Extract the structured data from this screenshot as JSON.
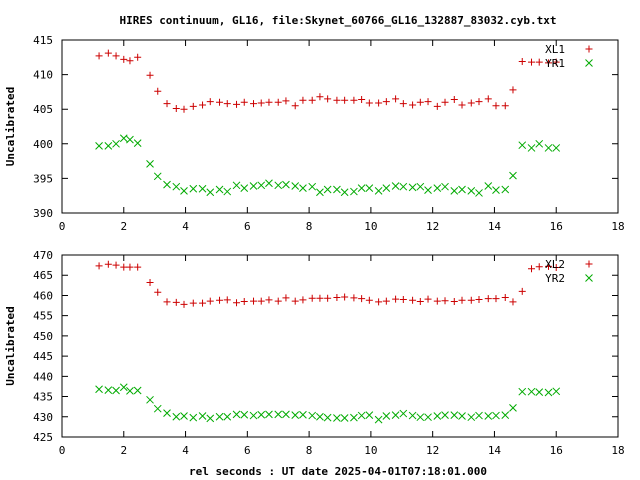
{
  "title": "HIRES continuum, GL16, file:Skynet_60766_GL16_132887_83032.cyb.txt",
  "xlabel": "rel seconds : UT date 2025-04-01T07:18:01.000",
  "chart_data": [
    {
      "type": "scatter",
      "ylabel": "Uncalibrated",
      "xlim": [
        0,
        18
      ],
      "ylim": [
        390,
        415
      ],
      "xticks": [
        0,
        2,
        4,
        6,
        8,
        10,
        12,
        14,
        16,
        18
      ],
      "yticks": [
        390,
        395,
        400,
        405,
        410,
        415
      ],
      "grid": false,
      "legend": "top-right",
      "series": [
        {
          "name": "XL1",
          "marker": "plus",
          "color": "#cc0000",
          "x": [
            1.2,
            1.5,
            1.75,
            2.0,
            2.2,
            2.45,
            2.85,
            3.1,
            3.4,
            3.7,
            3.95,
            4.25,
            4.55,
            4.8,
            5.1,
            5.35,
            5.65,
            5.9,
            6.2,
            6.45,
            6.7,
            7.0,
            7.25,
            7.55,
            7.8,
            8.1,
            8.35,
            8.6,
            8.9,
            9.15,
            9.45,
            9.7,
            9.95,
            10.25,
            10.5,
            10.8,
            11.05,
            11.35,
            11.6,
            11.85,
            12.15,
            12.4,
            12.7,
            12.95,
            13.25,
            13.5,
            13.8,
            14.05,
            14.35,
            14.6,
            14.9,
            15.2,
            15.45,
            15.75,
            16.0
          ],
          "y": [
            412.7,
            413.1,
            412.7,
            412.2,
            412.0,
            412.5,
            409.9,
            407.6,
            405.8,
            405.1,
            405.0,
            405.4,
            405.6,
            406.1,
            406.0,
            405.8,
            405.7,
            406.0,
            405.8,
            405.9,
            406.0,
            406.0,
            406.2,
            405.5,
            406.3,
            406.3,
            406.8,
            406.5,
            406.3,
            406.3,
            406.3,
            406.4,
            405.9,
            405.9,
            406.1,
            406.5,
            405.8,
            405.6,
            406.0,
            406.1,
            405.4,
            406.0,
            406.4,
            405.6,
            405.9,
            406.1,
            406.5,
            405.5,
            405.5,
            407.8,
            411.9,
            411.8,
            411.8,
            411.7,
            411.8
          ]
        },
        {
          "name": "YR1",
          "marker": "cross",
          "color": "#00aa00",
          "x": [
            1.2,
            1.5,
            1.75,
            2.0,
            2.2,
            2.45,
            2.85,
            3.1,
            3.4,
            3.7,
            3.95,
            4.25,
            4.55,
            4.8,
            5.1,
            5.35,
            5.65,
            5.9,
            6.2,
            6.45,
            6.7,
            7.0,
            7.25,
            7.55,
            7.8,
            8.1,
            8.35,
            8.6,
            8.9,
            9.15,
            9.45,
            9.7,
            9.95,
            10.25,
            10.5,
            10.8,
            11.05,
            11.35,
            11.6,
            11.85,
            12.15,
            12.4,
            12.7,
            12.95,
            13.25,
            13.5,
            13.8,
            14.05,
            14.35,
            14.6,
            14.9,
            15.2,
            15.45,
            15.75,
            16.0
          ],
          "y": [
            399.7,
            399.7,
            400.0,
            400.8,
            400.6,
            400.1,
            397.1,
            395.3,
            394.1,
            393.8,
            393.2,
            393.5,
            393.5,
            393.0,
            393.4,
            393.1,
            394.0,
            393.6,
            393.9,
            394.0,
            394.3,
            394.0,
            394.1,
            393.9,
            393.6,
            393.8,
            393.0,
            393.4,
            393.4,
            393.0,
            393.1,
            393.6,
            393.6,
            393.2,
            393.6,
            393.9,
            393.8,
            393.7,
            393.8,
            393.3,
            393.6,
            393.8,
            393.2,
            393.4,
            393.2,
            392.9,
            393.9,
            393.3,
            393.4,
            395.4,
            399.8,
            399.4,
            400.0,
            399.4,
            399.4
          ]
        }
      ]
    },
    {
      "type": "scatter",
      "ylabel": "Uncalibrated",
      "xlim": [
        0,
        18
      ],
      "ylim": [
        425,
        470
      ],
      "xticks": [
        0,
        2,
        4,
        6,
        8,
        10,
        12,
        14,
        16,
        18
      ],
      "yticks": [
        425,
        430,
        435,
        440,
        445,
        450,
        455,
        460,
        465,
        470
      ],
      "grid": false,
      "legend": "top-right",
      "series": [
        {
          "name": "XL2",
          "marker": "plus",
          "color": "#cc0000",
          "x": [
            1.2,
            1.5,
            1.75,
            2.0,
            2.2,
            2.45,
            2.85,
            3.1,
            3.4,
            3.7,
            3.95,
            4.25,
            4.55,
            4.8,
            5.1,
            5.35,
            5.65,
            5.9,
            6.2,
            6.45,
            6.7,
            7.0,
            7.25,
            7.55,
            7.8,
            8.1,
            8.35,
            8.6,
            8.9,
            9.15,
            9.45,
            9.7,
            9.95,
            10.25,
            10.5,
            10.8,
            11.05,
            11.35,
            11.6,
            11.85,
            12.15,
            12.4,
            12.7,
            12.95,
            13.25,
            13.5,
            13.8,
            14.05,
            14.35,
            14.6,
            14.9,
            15.2,
            15.45,
            15.75,
            16.0
          ],
          "y": [
            467.3,
            467.7,
            467.5,
            467.0,
            467.0,
            467.0,
            463.2,
            460.8,
            458.4,
            458.3,
            457.8,
            458.1,
            458.1,
            458.6,
            458.8,
            458.9,
            458.2,
            458.5,
            458.6,
            458.6,
            458.9,
            458.6,
            459.4,
            458.6,
            458.9,
            459.3,
            459.3,
            459.3,
            459.5,
            459.6,
            459.4,
            459.2,
            458.8,
            458.4,
            458.6,
            459.1,
            459.0,
            458.8,
            458.5,
            459.1,
            458.6,
            458.7,
            458.5,
            458.8,
            458.8,
            459.0,
            459.2,
            459.2,
            459.5,
            458.4,
            461.0,
            466.6,
            467.1,
            467.2,
            466.9
          ]
        },
        {
          "name": "YR2",
          "marker": "cross",
          "color": "#00aa00",
          "x": [
            1.2,
            1.5,
            1.75,
            2.0,
            2.2,
            2.45,
            2.85,
            3.1,
            3.4,
            3.7,
            3.95,
            4.25,
            4.55,
            4.8,
            5.1,
            5.35,
            5.65,
            5.9,
            6.2,
            6.45,
            6.7,
            7.0,
            7.25,
            7.55,
            7.8,
            8.1,
            8.35,
            8.6,
            8.9,
            9.15,
            9.45,
            9.7,
            9.95,
            10.25,
            10.5,
            10.8,
            11.05,
            11.35,
            11.6,
            11.85,
            12.15,
            12.4,
            12.7,
            12.95,
            13.25,
            13.5,
            13.8,
            14.05,
            14.35,
            14.6,
            14.9,
            15.2,
            15.45,
            15.75,
            16.0
          ],
          "y": [
            436.8,
            436.6,
            436.5,
            437.3,
            436.4,
            436.5,
            434.2,
            432.0,
            430.9,
            430.0,
            430.2,
            429.8,
            430.2,
            429.6,
            430.0,
            430.0,
            430.6,
            430.5,
            430.3,
            430.5,
            430.6,
            430.6,
            430.6,
            430.4,
            430.5,
            430.3,
            430.0,
            429.8,
            429.7,
            429.7,
            429.8,
            430.3,
            430.4,
            429.3,
            430.2,
            430.4,
            430.8,
            430.3,
            429.9,
            429.9,
            430.2,
            430.4,
            430.4,
            430.2,
            429.9,
            430.3,
            430.2,
            430.3,
            430.4,
            432.2,
            436.2,
            436.2,
            436.1,
            436.0,
            436.3
          ]
        }
      ]
    }
  ]
}
